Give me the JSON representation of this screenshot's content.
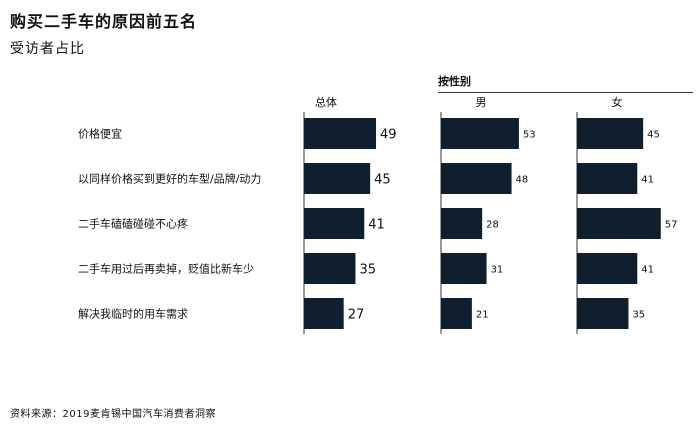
{
  "title": "购买二手车的原因前五名",
  "subtitle": "受访者占比",
  "group_header": "按性别",
  "source": "资料来源：2019麦肯锡中国汽车消费者洞察",
  "colors": {
    "bar": "#0f1f2e",
    "text": "#111111",
    "axis": "#333333"
  },
  "chart_data": {
    "type": "bar",
    "orientation": "horizontal",
    "categories": [
      "价格便宜",
      "以同样价格买到更好的车型/品牌/动力",
      "二手车磕磕碰碰不心疼",
      "二手车用过后再卖掉，贬值比新车少",
      "解决我临时的用车需求"
    ],
    "series": [
      {
        "name": "总体",
        "values": [
          49,
          45,
          41,
          35,
          27
        ]
      },
      {
        "name": "男",
        "values": [
          53,
          48,
          28,
          31,
          21
        ]
      },
      {
        "name": "女",
        "values": [
          45,
          41,
          57,
          41,
          35
        ]
      }
    ],
    "xlim": [
      0,
      70
    ],
    "grid": false,
    "legend": "none"
  }
}
